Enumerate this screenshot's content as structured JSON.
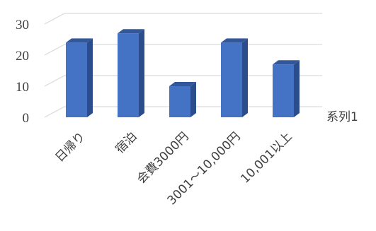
{
  "chart_data": {
    "type": "bar",
    "title": "",
    "xlabel": "",
    "ylabel": "",
    "categories": [
      "日帰り",
      "宿泊",
      "会費3000円",
      "3001～10,000円",
      "10,001以上"
    ],
    "series": [
      {
        "name": "系列1",
        "values": [
          24,
          27,
          10,
          24,
          17
        ]
      }
    ],
    "ylim": [
      0,
      30
    ],
    "yticks": [
      0,
      10,
      20,
      30
    ],
    "grid": true,
    "bar_style": "3d",
    "legend_position": "right",
    "colors": {
      "front": "#4472C4",
      "side": "#2B4D8C",
      "top": "#33589A",
      "grid": "#D9D9D9",
      "text": "#404040"
    }
  }
}
